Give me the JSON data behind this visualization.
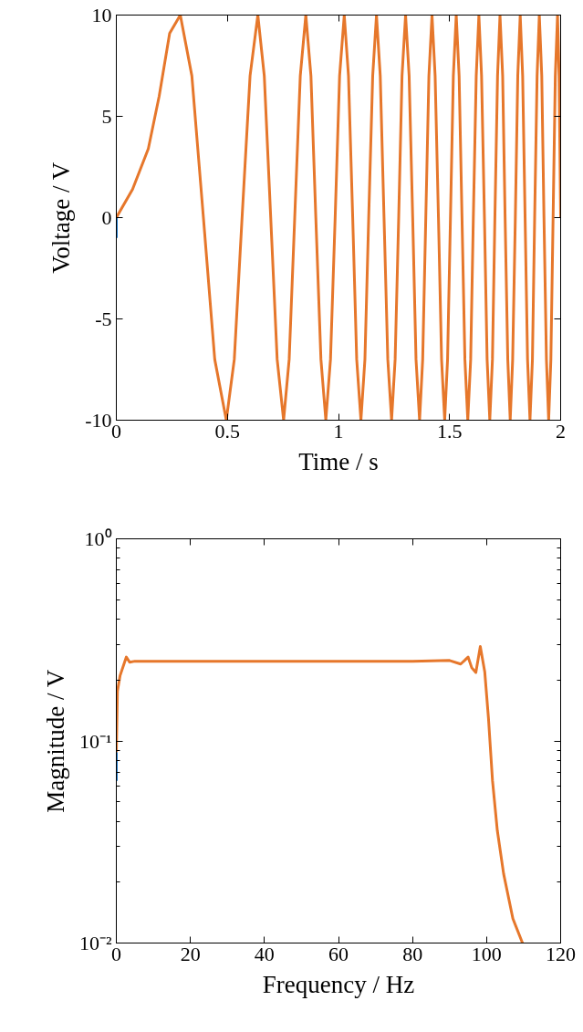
{
  "chart_data": [
    {
      "type": "line",
      "xlabel": "Time / s",
      "ylabel": "Voltage / V",
      "xlim": [
        0,
        2
      ],
      "ylim": [
        -10,
        10
      ],
      "xticks": [
        0,
        0.5,
        1,
        1.5,
        2
      ],
      "yticks": [
        -10,
        -5,
        0,
        5,
        10
      ],
      "grid": false,
      "series": [
        {
          "color": "#1a75c9",
          "x": [
            0,
            0
          ],
          "values": [
            0,
            -1
          ]
        },
        {
          "color": "#e6772b",
          "x": [
            0,
            0.073,
            0.144,
            0.193,
            0.24,
            0.288,
            0.34,
            0.392,
            0.443,
            0.495,
            0.531,
            0.566,
            0.602,
            0.637,
            0.666,
            0.695,
            0.724,
            0.753,
            0.778,
            0.803,
            0.828,
            0.853,
            0.876,
            0.898,
            0.921,
            0.943,
            0.964,
            0.985,
            1.005,
            1.026,
            1.045,
            1.064,
            1.082,
            1.101,
            1.119,
            1.136,
            1.154,
            1.171,
            1.188,
            1.205,
            1.222,
            1.239,
            1.255,
            1.271,
            1.286,
            1.302,
            1.318,
            1.334,
            1.349,
            1.365,
            1.379,
            1.393,
            1.407,
            1.421,
            1.435,
            1.45,
            1.464,
            1.478,
            1.491,
            1.504,
            1.517,
            1.53,
            1.543,
            1.556,
            1.569,
            1.582,
            1.595,
            1.607,
            1.62,
            1.632,
            1.644,
            1.657,
            1.669,
            1.681,
            1.693,
            1.704,
            1.716,
            1.727,
            1.739,
            1.75,
            1.762,
            1.773,
            1.784,
            1.796,
            1.807,
            1.818,
            1.829,
            1.84,
            1.851,
            1.862,
            1.873,
            1.883,
            1.894,
            1.904,
            1.915,
            1.925,
            1.936,
            1.946,
            1.956,
            1.966,
            1.976,
            1.986,
            1.993,
            2.0
          ],
          "values": [
            0,
            1.4,
            3.4,
            6,
            9.1,
            10,
            7,
            0,
            -7,
            -10,
            -7,
            0,
            7,
            10,
            7,
            0,
            -7,
            -10,
            -7,
            0,
            7,
            10,
            7,
            0,
            -7,
            -10,
            -7,
            0,
            7,
            10,
            7,
            0,
            -7,
            -10,
            -7,
            0,
            7,
            10,
            7,
            0,
            -7,
            -10,
            -7,
            0,
            7,
            10,
            7,
            0,
            -7,
            -10,
            -7,
            0,
            7,
            10,
            7,
            0,
            -7,
            -10,
            -7,
            0,
            7,
            10,
            7,
            0,
            -7,
            -10,
            -7,
            0,
            7,
            10,
            7,
            0,
            -7,
            -10,
            -7,
            0,
            7,
            10,
            7,
            0,
            -7,
            -10,
            -7,
            0,
            7,
            10,
            7,
            0,
            -7,
            -10,
            -7,
            0,
            7,
            10,
            7,
            0,
            -7,
            -10,
            -7,
            0,
            7,
            10,
            7,
            0
          ]
        }
      ]
    },
    {
      "type": "line",
      "xlabel": "Frequency / Hz",
      "ylabel": "Magnitude / V",
      "log": "y",
      "xlim": [
        0,
        120
      ],
      "ylim": [
        0.01,
        1
      ],
      "xticks": [
        0,
        20,
        40,
        60,
        80,
        100,
        120
      ],
      "yticks": [
        {
          "value": 0.01,
          "label": "10⁻²"
        },
        {
          "value": 0.1,
          "label": "10⁻¹"
        },
        {
          "value": 1,
          "label": "10⁰"
        }
      ],
      "grid": false,
      "series": [
        {
          "color": "#1a75c9",
          "x": [
            0,
            0
          ],
          "values": [
            0.088,
            0.0635
          ]
        },
        {
          "color": "#e6772b",
          "x": [
            0,
            0.3,
            1,
            2.7,
            3.6,
            5,
            20,
            40,
            60,
            80,
            90,
            93,
            95,
            96,
            97.1,
            98.3,
            99.5,
            100.5,
            101.6,
            102.9,
            104.6,
            107.1,
            109.7
          ],
          "values": [
            0.088,
            0.176,
            0.21,
            0.26,
            0.245,
            0.248,
            0.248,
            0.248,
            0.248,
            0.248,
            0.25,
            0.24,
            0.26,
            0.23,
            0.218,
            0.293,
            0.22,
            0.13,
            0.0635,
            0.036,
            0.022,
            0.0132,
            0.01
          ]
        }
      ]
    }
  ]
}
